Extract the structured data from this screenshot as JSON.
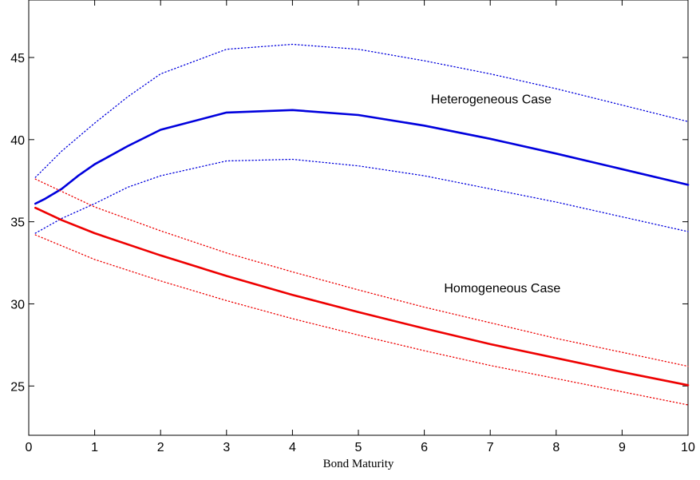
{
  "chart_data": {
    "type": "line",
    "xlabel": "Bond Maturity",
    "ylabel": "",
    "xlim": [
      0,
      10
    ],
    "ylim": [
      22,
      48.5
    ],
    "x_ticks": [
      0,
      1,
      2,
      3,
      4,
      5,
      6,
      7,
      8,
      9,
      10
    ],
    "y_ticks": [
      25,
      30,
      35,
      40,
      45
    ],
    "grid": false,
    "annotations": [
      {
        "text": "Heterogeneous Case",
        "x": 6.1,
        "y": 42.2
      },
      {
        "text": "Homogeneous Case",
        "x": 6.3,
        "y": 30.7
      }
    ],
    "series": [
      {
        "color": "#0000dd",
        "style": "solid",
        "x": [
          0.1,
          0.25,
          0.5,
          0.75,
          1,
          1.5,
          2,
          3,
          4,
          5,
          6,
          7,
          8,
          9,
          10
        ],
        "y": [
          36.1,
          36.4,
          37.0,
          37.8,
          38.5,
          39.6,
          40.6,
          41.65,
          41.8,
          41.5,
          40.85,
          40.05,
          39.15,
          38.2,
          37.25
        ]
      },
      {
        "color": "#0000dd",
        "style": "dotted",
        "x": [
          0.1,
          0.5,
          1,
          1.5,
          2,
          3,
          4,
          5,
          6,
          7,
          8,
          9,
          10
        ],
        "y": [
          37.7,
          39.3,
          41.0,
          42.6,
          44.0,
          45.5,
          45.8,
          45.5,
          44.8,
          44.0,
          43.1,
          42.1,
          41.1
        ]
      },
      {
        "color": "#0000dd",
        "style": "dotted",
        "x": [
          0.1,
          0.5,
          1,
          1.5,
          2,
          3,
          4,
          5,
          6,
          7,
          8,
          9,
          10
        ],
        "y": [
          34.3,
          35.2,
          36.1,
          37.1,
          37.8,
          38.7,
          38.8,
          38.4,
          37.8,
          37.0,
          36.2,
          35.3,
          34.4
        ]
      },
      {
        "color": "#ee0000",
        "style": "solid",
        "x": [
          0.1,
          0.5,
          1,
          2,
          3,
          4,
          5,
          6,
          7,
          8,
          9,
          10
        ],
        "y": [
          35.85,
          35.1,
          34.3,
          32.95,
          31.7,
          30.55,
          29.5,
          28.5,
          27.55,
          26.7,
          25.85,
          25.05
        ]
      },
      {
        "color": "#ee0000",
        "style": "dotted",
        "x": [
          0.1,
          1,
          2,
          3,
          4,
          5,
          6,
          7,
          8,
          9,
          10
        ],
        "y": [
          37.6,
          35.9,
          34.45,
          33.1,
          31.95,
          30.85,
          29.8,
          28.85,
          27.9,
          27.05,
          26.2
        ]
      },
      {
        "color": "#ee0000",
        "style": "dotted",
        "x": [
          0.1,
          1,
          2,
          3,
          4,
          5,
          6,
          7,
          8,
          9,
          10
        ],
        "y": [
          34.2,
          32.7,
          31.4,
          30.2,
          29.1,
          28.1,
          27.15,
          26.25,
          25.45,
          24.65,
          23.85
        ]
      }
    ]
  }
}
